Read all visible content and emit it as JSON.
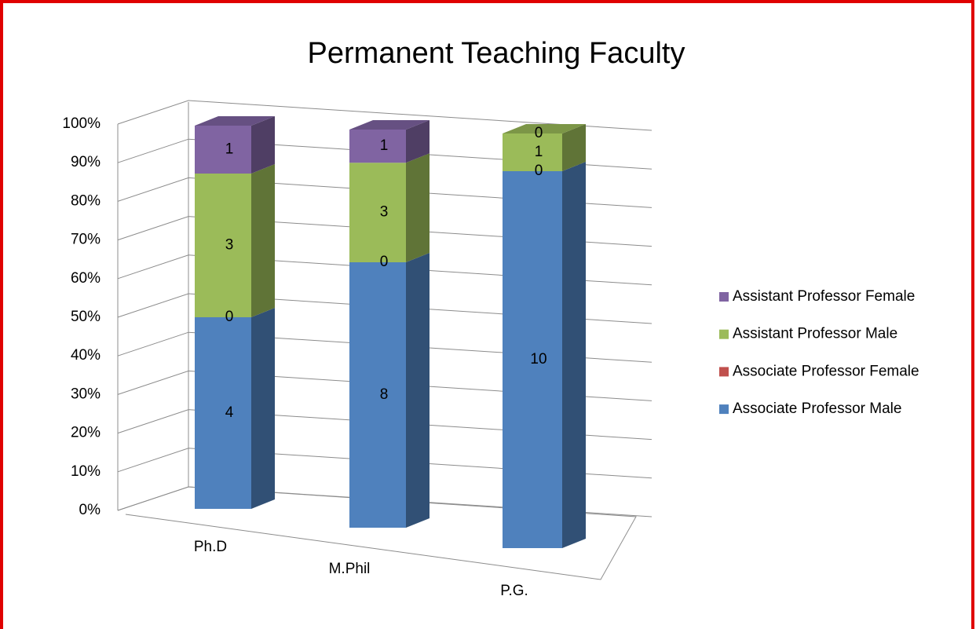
{
  "chart_data": {
    "type": "bar",
    "stacked": "percent",
    "title": "Permanent Teaching Faculty",
    "categories": [
      "Ph.D",
      "M.Phil",
      "P.G."
    ],
    "series": [
      {
        "name": "Associate Professor Male",
        "color": "#4f81bd",
        "values": [
          4,
          8,
          10
        ]
      },
      {
        "name": "Associate Professor Female",
        "color": "#c0504d",
        "values": [
          0,
          0,
          0
        ]
      },
      {
        "name": "Assistant Professor Male",
        "color": "#9bbb59",
        "values": [
          3,
          3,
          1
        ]
      },
      {
        "name": "Assistant Professor Female",
        "color": "#8064a2",
        "values": [
          1,
          1,
          0
        ]
      }
    ],
    "ylim": [
      0,
      100
    ],
    "yticks": [
      {
        "value": 0,
        "label": "0%"
      },
      {
        "value": 10,
        "label": "10%"
      },
      {
        "value": 20,
        "label": "20%"
      },
      {
        "value": 30,
        "label": "30%"
      },
      {
        "value": 40,
        "label": "40%"
      },
      {
        "value": 50,
        "label": "50%"
      },
      {
        "value": 60,
        "label": "60%"
      },
      {
        "value": 70,
        "label": "70%"
      },
      {
        "value": 80,
        "label": "80%"
      },
      {
        "value": 90,
        "label": "90%"
      },
      {
        "value": 100,
        "label": "100%"
      }
    ],
    "grid": true,
    "legend": "right"
  }
}
